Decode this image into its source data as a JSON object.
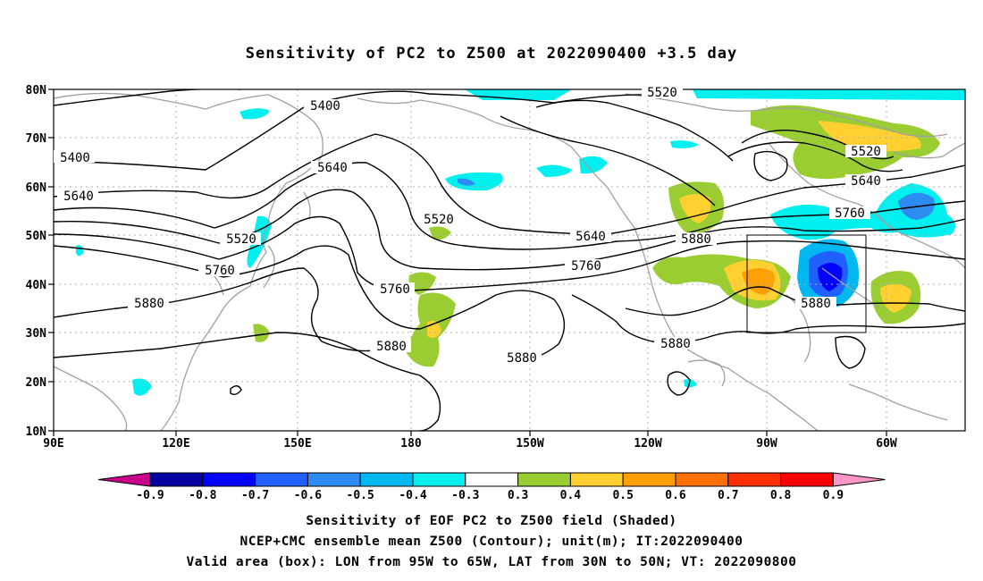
{
  "title": "Sensitivity of PC2 to Z500 at 2022090400 +3.5 day",
  "map": {
    "lat_labels": [
      "80N",
      "70N",
      "60N",
      "50N",
      "40N",
      "30N",
      "20N",
      "10N"
    ],
    "lon_labels": [
      "90E",
      "120E",
      "150E",
      "180",
      "150W",
      "120W",
      "90W",
      "60W"
    ],
    "contour_labels": [
      "5520",
      "5400",
      "5400",
      "5640",
      "5640",
      "5520",
      "5760",
      "5520",
      "5640",
      "5760",
      "5760",
      "5880",
      "5880",
      "5880",
      "5880",
      "5880",
      "5520",
      "5640",
      "5760",
      "5880"
    ],
    "valid_box": {
      "lon_from": "95W",
      "lon_to": "65W",
      "lat_from": "30N",
      "lat_to": "50N"
    }
  },
  "colorbar": {
    "labels": [
      "-0.9",
      "-0.8",
      "-0.7",
      "-0.6",
      "-0.5",
      "-0.4",
      "-0.3",
      "0.3",
      "0.4",
      "0.5",
      "0.6",
      "0.7",
      "0.8",
      "0.9"
    ],
    "colors": [
      "#c8008c",
      "#0000a0",
      "#0000ff",
      "#2060ff",
      "#2e8cf0",
      "#00b8f0",
      "#00f0f0",
      "#ffffff",
      "#9acd32",
      "#ffd030",
      "#ffa000",
      "#ff7000",
      "#ff3000",
      "#ff0000",
      "#ff96c8"
    ]
  },
  "footer": {
    "line1": "Sensitivity of EOF PC2 to Z500 field (Shaded)",
    "line2": "NCEP+CMC ensemble mean Z500 (Contour); unit(m); IT:2022090400",
    "line3": "Valid area (box): LON from 95W to 65W, LAT from 30N to 50N; VT: 2022090800"
  }
}
